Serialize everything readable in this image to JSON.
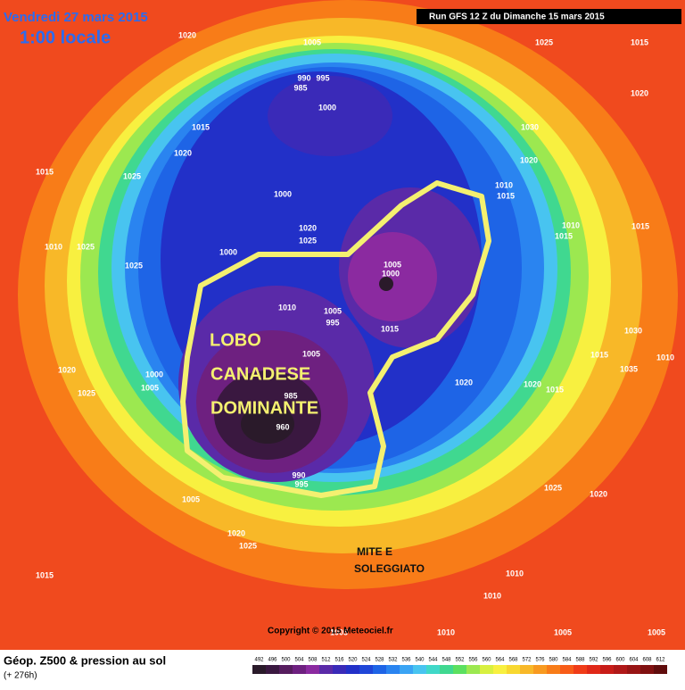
{
  "header": {
    "date": "Vendredi 27 mars 2015",
    "time": "1:00 locale",
    "run": "Run GFS 12 Z du Dimanche 15 mars 2015"
  },
  "annotations": {
    "lobe": [
      "LOBO",
      "CANADESE",
      "DOMINANTE"
    ],
    "south": [
      "MITE E",
      "SOLEGGIATO"
    ]
  },
  "isobars": [
    1020,
    1005,
    990,
    995,
    985,
    1000,
    1025,
    1015,
    1020,
    1015,
    1020,
    1030,
    1020,
    1015,
    1025,
    1000,
    1010,
    1015,
    1020,
    1025,
    1010,
    1015,
    1015,
    1010,
    1025,
    1000,
    1025,
    1005,
    1000,
    1010,
    1005,
    995,
    1015,
    1030,
    1015,
    1035,
    1010,
    1020,
    1000,
    1005,
    1025,
    1005,
    1020,
    1020,
    1015,
    985,
    960,
    990,
    995,
    1005,
    1025,
    1020,
    1020,
    1025,
    1015,
    1010,
    1010,
    1005,
    1010,
    1005,
    1005
  ],
  "copyright": "Copyright © 2015 Meteociel.fr",
  "footer": {
    "title": "Géop. Z500 & pression au sol",
    "lead": "(+ 276h)"
  },
  "colorbar": {
    "ticks": [
      492,
      496,
      500,
      504,
      508,
      512,
      516,
      520,
      524,
      528,
      532,
      536,
      540,
      544,
      548,
      552,
      556,
      560,
      564,
      568,
      572,
      576,
      580,
      584,
      588,
      592,
      596,
      600,
      604,
      608,
      612
    ],
    "colors": [
      "#2a1a2a",
      "#3a1840",
      "#561c5e",
      "#6e2080",
      "#8b2aa0",
      "#5a2aa8",
      "#3a2ab8",
      "#2230c8",
      "#1f46d8",
      "#1e64e6",
      "#2a84f0",
      "#3aa4f4",
      "#48c4f0",
      "#40d8c8",
      "#40d890",
      "#5ce060",
      "#9ce850",
      "#d8f040",
      "#f8f040",
      "#f8d830",
      "#f8b828",
      "#f89a20",
      "#f87c18",
      "#f85c18",
      "#f03c18",
      "#e02818",
      "#c81c18",
      "#b01818",
      "#981414",
      "#801010",
      "#600c0c"
    ]
  }
}
